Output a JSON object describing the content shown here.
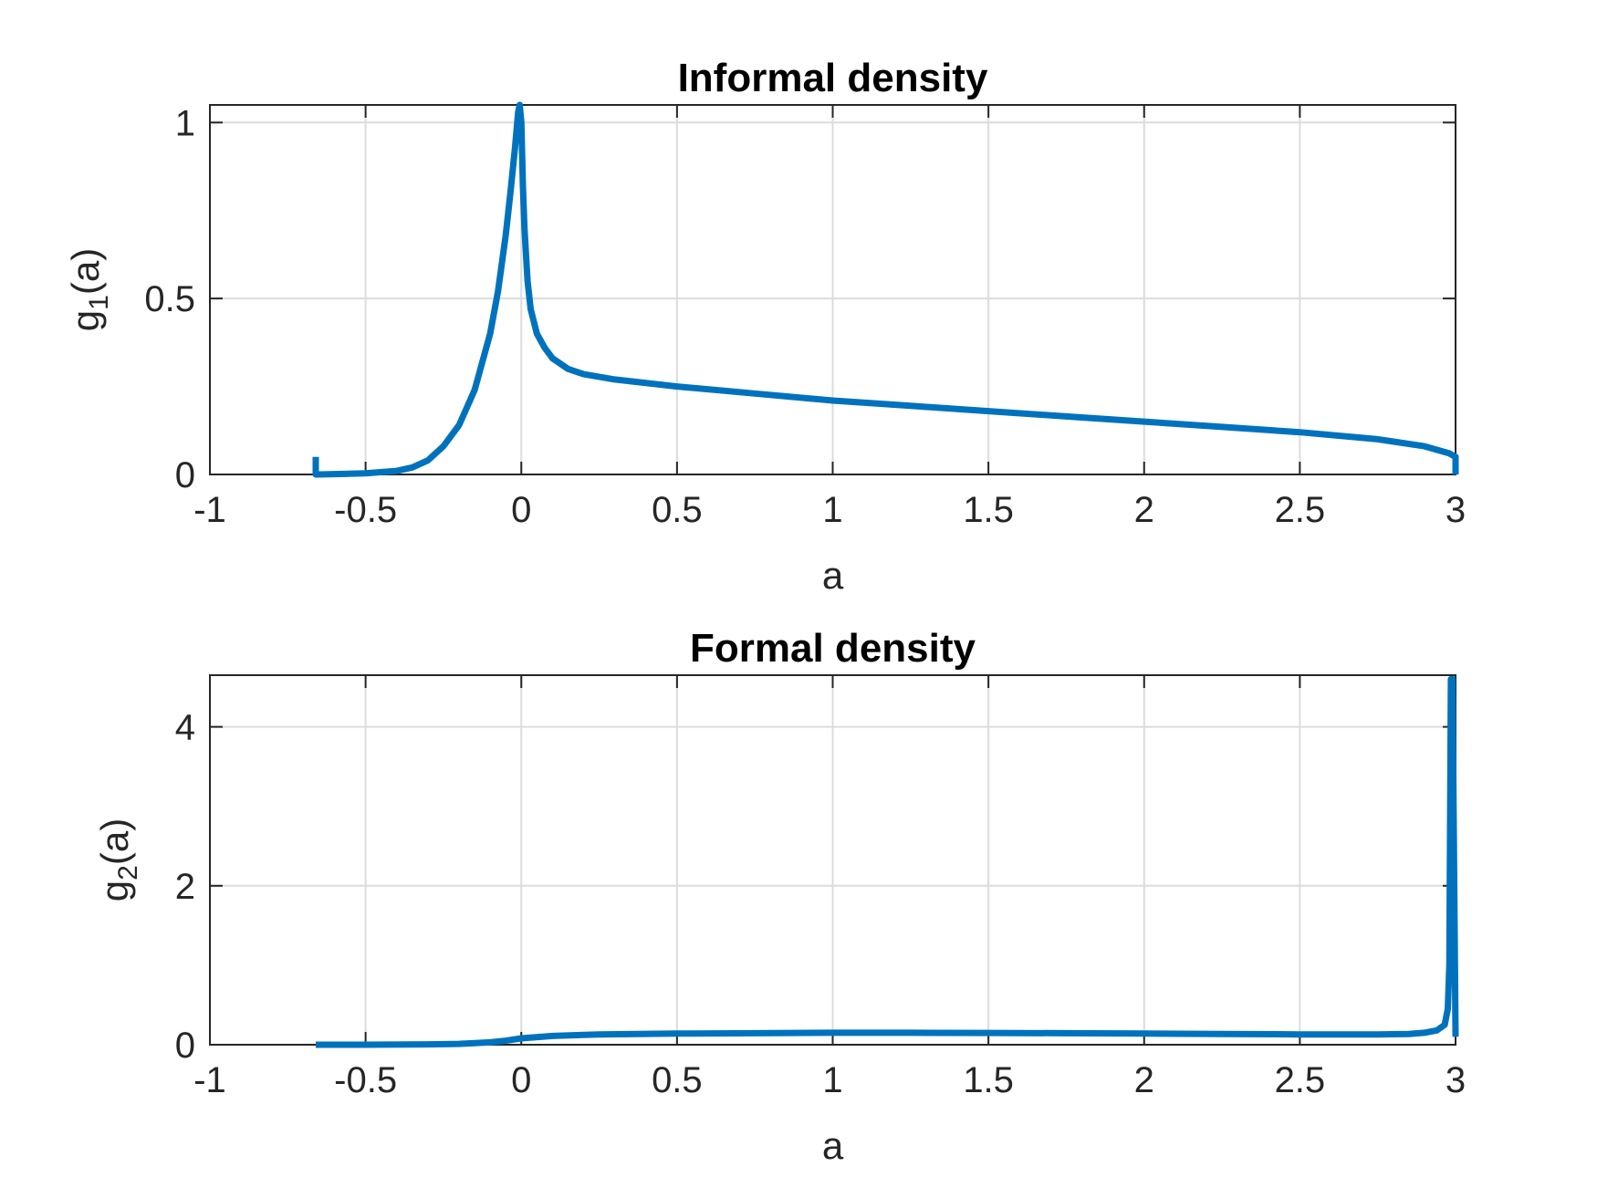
{
  "figure": {
    "background": "#ffffff",
    "line_color": "#0072bd"
  },
  "chart_data": [
    {
      "type": "line",
      "title": "Informal density",
      "xlabel": "a",
      "ylabel": "g(a)",
      "ylabel_base": "g",
      "ylabel_sub": "1",
      "ylabel_arg": "(a)",
      "xlim": [
        -1,
        3
      ],
      "ylim": [
        0,
        1.05
      ],
      "grid": true,
      "xticks": [
        -1,
        -0.5,
        0,
        0.5,
        1,
        1.5,
        2,
        2.5,
        3
      ],
      "xtick_labels": [
        "-1",
        "-0.5",
        "0",
        "0.5",
        "1",
        "1.5",
        "2",
        "2.5",
        "3"
      ],
      "yticks": [
        0,
        0.5,
        1
      ],
      "ytick_labels": [
        "0",
        "0.5",
        "1"
      ],
      "series": [
        {
          "color": "#0072bd",
          "x": [
            -0.66,
            -0.66,
            -0.65,
            -0.6,
            -0.5,
            -0.4,
            -0.35,
            -0.3,
            -0.25,
            -0.2,
            -0.15,
            -0.1,
            -0.075,
            -0.05,
            -0.035,
            -0.02,
            -0.01,
            -0.005,
            0,
            0.005,
            0.01,
            0.02,
            0.03,
            0.05,
            0.075,
            0.1,
            0.15,
            0.2,
            0.3,
            0.5,
            0.75,
            1,
            1.25,
            1.5,
            1.75,
            2,
            2.25,
            2.5,
            2.75,
            2.9,
            2.98,
            3.0,
            3.0
          ],
          "y": [
            0.05,
            0.0,
            0.0,
            0.001,
            0.003,
            0.01,
            0.02,
            0.04,
            0.08,
            0.14,
            0.24,
            0.4,
            0.52,
            0.68,
            0.8,
            0.93,
            1.03,
            1.05,
            1.0,
            0.82,
            0.7,
            0.55,
            0.47,
            0.4,
            0.36,
            0.33,
            0.3,
            0.285,
            0.27,
            0.25,
            0.23,
            0.21,
            0.195,
            0.18,
            0.165,
            0.15,
            0.135,
            0.12,
            0.1,
            0.08,
            0.06,
            0.05,
            0.0
          ]
        }
      ]
    },
    {
      "type": "line",
      "title": "Formal density",
      "xlabel": "a",
      "ylabel": "g(a)",
      "ylabel_base": "g",
      "ylabel_sub": "2",
      "ylabel_arg": "(a)",
      "xlim": [
        -1,
        3
      ],
      "ylim": [
        0,
        4.65
      ],
      "grid": true,
      "xticks": [
        -1,
        -0.5,
        0,
        0.5,
        1,
        1.5,
        2,
        2.5,
        3
      ],
      "xtick_labels": [
        "-1",
        "-0.5",
        "0",
        "0.5",
        "1",
        "1.5",
        "2",
        "2.5",
        "3"
      ],
      "yticks": [
        0,
        2,
        4
      ],
      "ytick_labels": [
        "0",
        "2",
        "4"
      ],
      "series": [
        {
          "color": "#0072bd",
          "x": [
            -0.66,
            -0.5,
            -0.3,
            -0.2,
            -0.1,
            -0.05,
            0,
            0.1,
            0.25,
            0.5,
            0.75,
            1,
            1.25,
            1.5,
            1.75,
            2,
            2.25,
            2.5,
            2.75,
            2.85,
            2.9,
            2.94,
            2.965,
            2.975,
            2.98,
            2.985,
            2.99,
            3.0
          ],
          "y": [
            0.0,
            0.0,
            0.005,
            0.01,
            0.03,
            0.05,
            0.08,
            0.11,
            0.13,
            0.14,
            0.145,
            0.15,
            0.15,
            0.148,
            0.145,
            0.14,
            0.135,
            0.13,
            0.13,
            0.135,
            0.15,
            0.18,
            0.25,
            0.45,
            1.0,
            4.6,
            4.6,
            0.1
          ]
        }
      ]
    }
  ]
}
